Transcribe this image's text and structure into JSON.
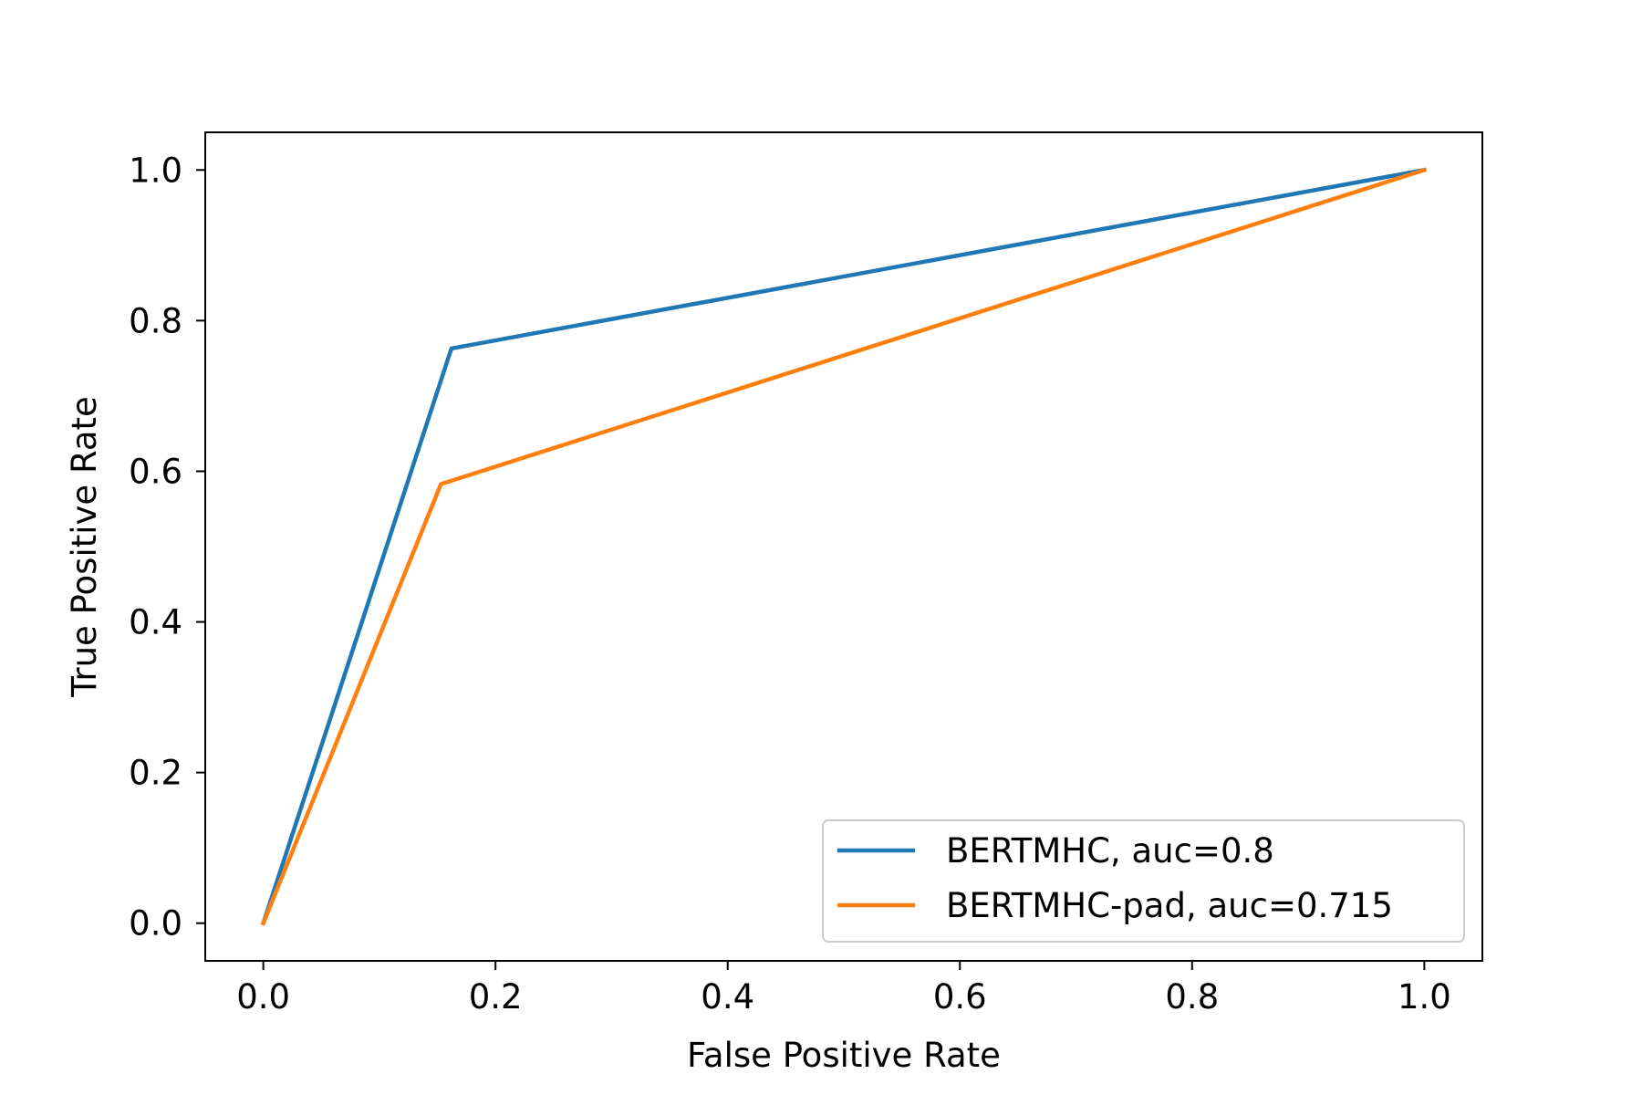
{
  "chart_data": {
    "type": "line",
    "title": "",
    "xlabel": "False Positive Rate",
    "ylabel": "True Positive Rate",
    "xlim": [
      -0.05,
      1.05
    ],
    "ylim": [
      -0.05,
      1.05
    ],
    "xticks": [
      0.0,
      0.2,
      0.4,
      0.6,
      0.8,
      1.0
    ],
    "yticks": [
      0.0,
      0.2,
      0.4,
      0.6,
      0.8,
      1.0
    ],
    "xtick_labels": [
      "0.0",
      "0.2",
      "0.4",
      "0.6",
      "0.8",
      "1.0"
    ],
    "ytick_labels": [
      "0.0",
      "0.2",
      "0.4",
      "0.6",
      "0.8",
      "1.0"
    ],
    "grid": false,
    "legend_position": "lower right",
    "series": [
      {
        "name": "BERTMHC, auc=0.8",
        "color": "#1f77b4",
        "x": [
          0.0,
          0.162,
          1.0
        ],
        "y": [
          0.0,
          0.763,
          1.0
        ]
      },
      {
        "name": "BERTMHC-pad, auc=0.715",
        "color": "#ff7f0e",
        "x": [
          0.0,
          0.153,
          1.0
        ],
        "y": [
          0.0,
          0.583,
          1.0
        ]
      }
    ]
  }
}
